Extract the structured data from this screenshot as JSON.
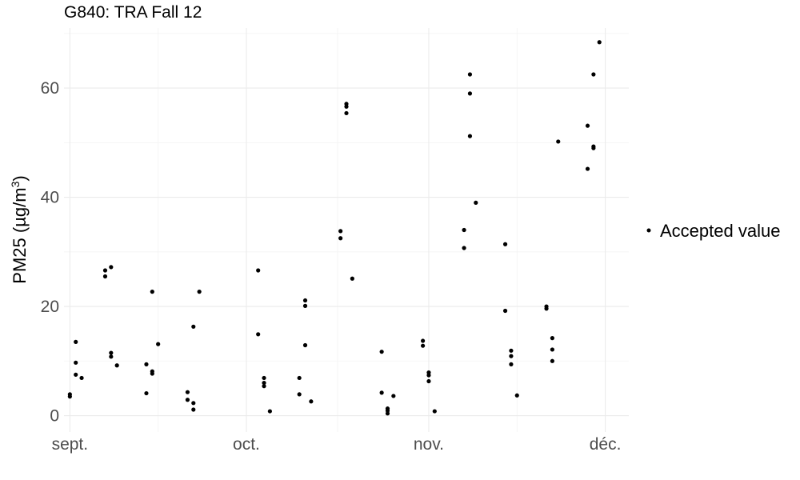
{
  "chart_data": {
    "type": "scatter",
    "title": "G840: TRA Fall 12",
    "ylabel_prefix": "PM25 (",
    "ylabel_unit": "µg/m",
    "ylabel_sup": "3",
    "ylabel_suffix": ")",
    "xlabel": "",
    "ylim": [
      -3,
      71
    ],
    "xlim": [
      "2012-08-31",
      "2012-12-05"
    ],
    "x_ticks": [
      {
        "date": "2012-09-01",
        "label": "sept."
      },
      {
        "date": "2012-10-01",
        "label": "oct."
      },
      {
        "date": "2012-11-01",
        "label": "nov."
      },
      {
        "date": "2012-12-01",
        "label": "déc."
      }
    ],
    "y_ticks": [
      0,
      20,
      40,
      60
    ],
    "grid": true,
    "legend_position": "right",
    "series": [
      {
        "name": "Accepted value",
        "color": "#000000",
        "points": [
          {
            "x": "2012-09-01",
            "y": 3.5
          },
          {
            "x": "2012-09-01",
            "y": 3.9
          },
          {
            "x": "2012-09-02",
            "y": 7.5
          },
          {
            "x": "2012-09-02",
            "y": 9.7
          },
          {
            "x": "2012-09-02",
            "y": 13.5
          },
          {
            "x": "2012-09-03",
            "y": 6.9
          },
          {
            "x": "2012-09-07",
            "y": 26.6
          },
          {
            "x": "2012-09-07",
            "y": 25.5
          },
          {
            "x": "2012-09-08",
            "y": 27.2
          },
          {
            "x": "2012-09-08",
            "y": 11.5
          },
          {
            "x": "2012-09-08",
            "y": 10.8
          },
          {
            "x": "2012-09-09",
            "y": 9.2
          },
          {
            "x": "2012-09-14",
            "y": 4.1
          },
          {
            "x": "2012-09-14",
            "y": 9.4
          },
          {
            "x": "2012-09-15",
            "y": 7.7
          },
          {
            "x": "2012-09-15",
            "y": 8.1
          },
          {
            "x": "2012-09-15",
            "y": 22.7
          },
          {
            "x": "2012-09-16",
            "y": 13.1
          },
          {
            "x": "2012-09-21",
            "y": 4.3
          },
          {
            "x": "2012-09-21",
            "y": 2.9
          },
          {
            "x": "2012-09-22",
            "y": 2.3
          },
          {
            "x": "2012-09-22",
            "y": 1.1
          },
          {
            "x": "2012-09-22",
            "y": 16.3
          },
          {
            "x": "2012-09-23",
            "y": 22.7
          },
          {
            "x": "2012-10-03",
            "y": 26.6
          },
          {
            "x": "2012-10-03",
            "y": 14.9
          },
          {
            "x": "2012-10-04",
            "y": 6.9
          },
          {
            "x": "2012-10-04",
            "y": 6.0
          },
          {
            "x": "2012-10-04",
            "y": 5.4
          },
          {
            "x": "2012-10-05",
            "y": 0.8
          },
          {
            "x": "2012-10-10",
            "y": 3.9
          },
          {
            "x": "2012-10-10",
            "y": 6.9
          },
          {
            "x": "2012-10-11",
            "y": 21.1
          },
          {
            "x": "2012-10-11",
            "y": 20.1
          },
          {
            "x": "2012-10-11",
            "y": 12.9
          },
          {
            "x": "2012-10-12",
            "y": 2.6
          },
          {
            "x": "2012-10-17",
            "y": 32.5
          },
          {
            "x": "2012-10-17",
            "y": 33.8
          },
          {
            "x": "2012-10-18",
            "y": 57.1
          },
          {
            "x": "2012-10-18",
            "y": 56.6
          },
          {
            "x": "2012-10-18",
            "y": 55.4
          },
          {
            "x": "2012-10-19",
            "y": 25.1
          },
          {
            "x": "2012-10-24",
            "y": 4.2
          },
          {
            "x": "2012-10-24",
            "y": 11.7
          },
          {
            "x": "2012-10-25",
            "y": 1.3
          },
          {
            "x": "2012-10-25",
            "y": 0.9
          },
          {
            "x": "2012-10-25",
            "y": 0.4
          },
          {
            "x": "2012-10-26",
            "y": 3.6
          },
          {
            "x": "2012-10-31",
            "y": 13.7
          },
          {
            "x": "2012-10-31",
            "y": 12.8
          },
          {
            "x": "2012-11-01",
            "y": 7.9
          },
          {
            "x": "2012-11-01",
            "y": 7.4
          },
          {
            "x": "2012-11-01",
            "y": 6.3
          },
          {
            "x": "2012-11-02",
            "y": 0.8
          },
          {
            "x": "2012-11-07",
            "y": 30.7
          },
          {
            "x": "2012-11-07",
            "y": 34.0
          },
          {
            "x": "2012-11-08",
            "y": 62.5
          },
          {
            "x": "2012-11-08",
            "y": 59.0
          },
          {
            "x": "2012-11-08",
            "y": 51.2
          },
          {
            "x": "2012-11-09",
            "y": 39.0
          },
          {
            "x": "2012-11-14",
            "y": 19.2
          },
          {
            "x": "2012-11-14",
            "y": 31.4
          },
          {
            "x": "2012-11-15",
            "y": 11.9
          },
          {
            "x": "2012-11-15",
            "y": 10.9
          },
          {
            "x": "2012-11-15",
            "y": 9.4
          },
          {
            "x": "2012-11-16",
            "y": 3.7
          },
          {
            "x": "2012-11-21",
            "y": 19.6
          },
          {
            "x": "2012-11-21",
            "y": 20.0
          },
          {
            "x": "2012-11-22",
            "y": 14.2
          },
          {
            "x": "2012-11-22",
            "y": 12.1
          },
          {
            "x": "2012-11-22",
            "y": 10.0
          },
          {
            "x": "2012-11-23",
            "y": 50.2
          },
          {
            "x": "2012-11-28",
            "y": 53.1
          },
          {
            "x": "2012-11-28",
            "y": 45.2
          },
          {
            "x": "2012-11-29",
            "y": 49.3
          },
          {
            "x": "2012-11-29",
            "y": 49.0
          },
          {
            "x": "2012-11-29",
            "y": 62.5
          },
          {
            "x": "2012-11-30",
            "y": 68.4
          }
        ]
      }
    ]
  }
}
